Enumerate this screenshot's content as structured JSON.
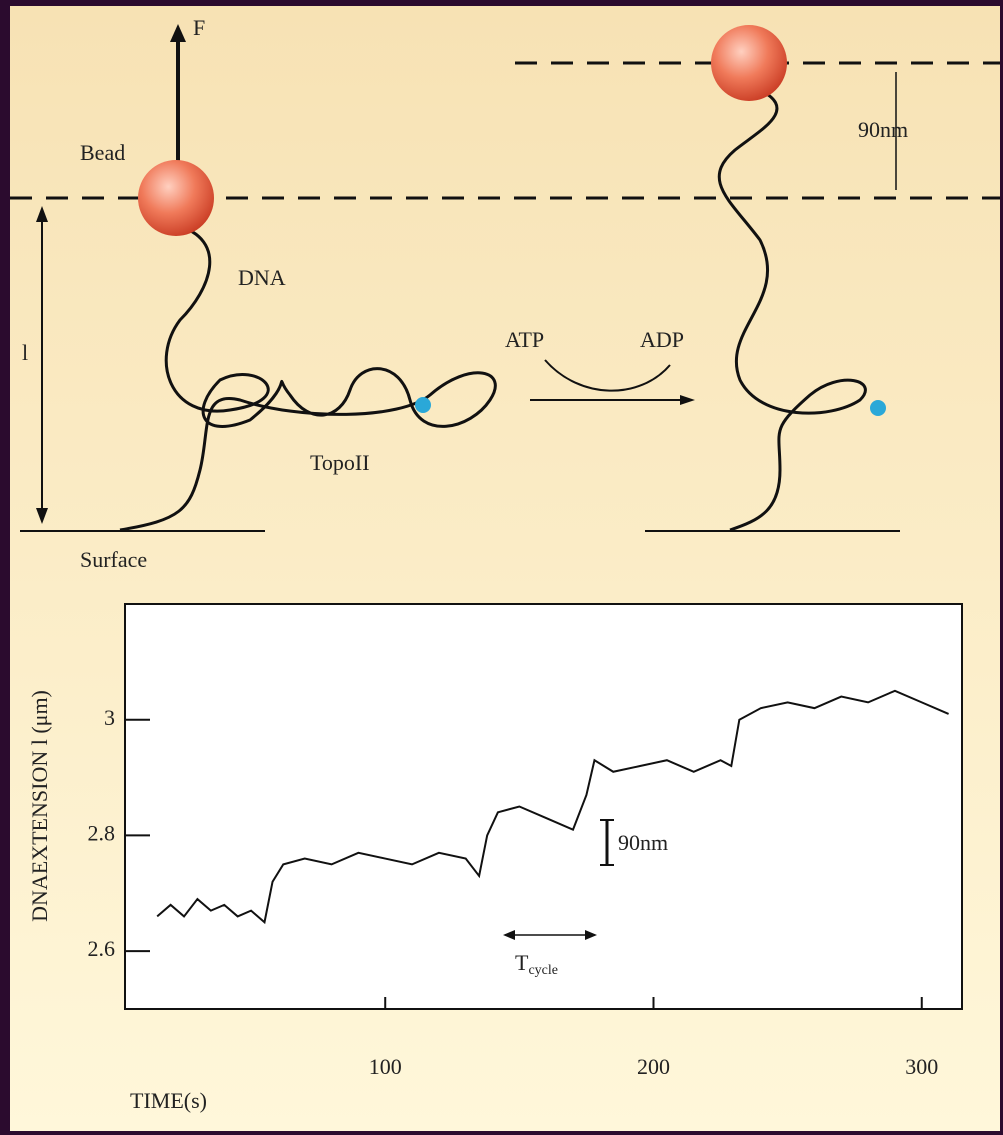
{
  "diagram": {
    "force": "F",
    "bead": "Bead",
    "dna": "DNA",
    "extension": "l",
    "enzyme": "TopoII",
    "surface": "Surface",
    "atp": "ATP",
    "adp": "ADP",
    "step": "90nm"
  },
  "chart_data": {
    "type": "line",
    "x_label": "TIME(s)",
    "y_label": "DNAEXTENSION   l (μm)",
    "annotations": {
      "step": "90nm",
      "cycle": "T",
      "cycle_sub": "cycle"
    },
    "x": [
      15,
      20,
      25,
      30,
      35,
      40,
      45,
      50,
      55,
      58,
      62,
      70,
      80,
      90,
      100,
      110,
      120,
      130,
      135,
      138,
      142,
      150,
      160,
      170,
      175,
      178,
      185,
      195,
      205,
      215,
      225,
      229,
      232,
      240,
      250,
      260,
      270,
      280,
      290,
      300,
      310
    ],
    "series": [
      {
        "color": "#111111",
        "values": [
          2.66,
          2.68,
          2.66,
          2.69,
          2.67,
          2.68,
          2.66,
          2.67,
          2.65,
          2.72,
          2.75,
          2.76,
          2.75,
          2.77,
          2.76,
          2.75,
          2.77,
          2.76,
          2.73,
          2.8,
          2.84,
          2.85,
          2.83,
          2.81,
          2.87,
          2.93,
          2.91,
          2.92,
          2.93,
          2.91,
          2.93,
          2.92,
          3.0,
          3.02,
          3.03,
          3.02,
          3.04,
          3.03,
          3.05,
          3.03,
          3.01
        ]
      }
    ],
    "xlim": [
      3,
      315
    ],
    "ylim": [
      2.5,
      3.2
    ],
    "xticks": [
      100,
      200,
      300
    ],
    "yticks": [
      2.6,
      2.8,
      3
    ]
  }
}
